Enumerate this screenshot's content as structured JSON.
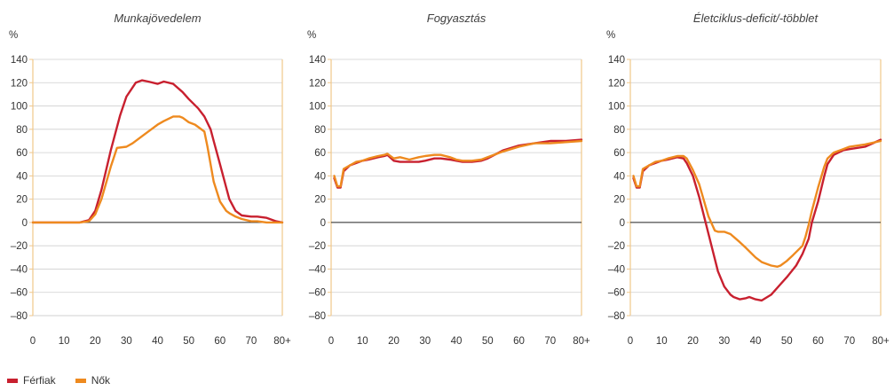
{
  "legend": [
    "Férfiak",
    "Nők"
  ],
  "colors": {
    "ferfiak": "#c8202f",
    "nok": "#ee8a1f",
    "axis_frame": "#f0c78a",
    "grid": "#cfcfcf",
    "zero_line": "#222222"
  },
  "chart_data": [
    {
      "type": "line",
      "title": "Munkajövedelem",
      "ylabel": "%",
      "xlim": [
        0,
        80
      ],
      "ylim": [
        -80,
        140
      ],
      "x_ticks": [
        "0",
        "10",
        "20",
        "30",
        "40",
        "50",
        "60",
        "70",
        "80+"
      ],
      "y_ticks": [
        "140",
        "120",
        "100",
        "80",
        "60",
        "40",
        "20",
        "0",
        "–20",
        "–40",
        "–60",
        "–80"
      ],
      "series": [
        {
          "name": "Férfiak",
          "x": [
            0,
            5,
            10,
            15,
            18,
            20,
            22,
            25,
            28,
            30,
            33,
            35,
            37,
            40,
            42,
            45,
            48,
            50,
            53,
            55,
            57,
            58,
            60,
            62,
            63,
            65,
            67,
            70,
            72,
            75,
            78,
            80
          ],
          "y": [
            0,
            0,
            0,
            0,
            2,
            10,
            28,
            62,
            92,
            108,
            120,
            122,
            121,
            119,
            121,
            119,
            112,
            106,
            98,
            91,
            80,
            70,
            50,
            30,
            20,
            10,
            6,
            5,
            5,
            4,
            1,
            0
          ]
        },
        {
          "name": "Nők",
          "x": [
            0,
            5,
            10,
            15,
            18,
            20,
            22,
            25,
            27,
            30,
            32,
            35,
            38,
            40,
            42,
            45,
            47,
            48,
            50,
            52,
            55,
            56,
            57,
            58,
            60,
            62,
            63,
            65,
            67,
            70,
            72,
            75,
            80
          ],
          "y": [
            0,
            0,
            0,
            0,
            1,
            7,
            20,
            48,
            64,
            65,
            68,
            74,
            80,
            84,
            87,
            91,
            91,
            90,
            86,
            84,
            78,
            65,
            50,
            35,
            18,
            10,
            8,
            5,
            3,
            1,
            1,
            0,
            0
          ]
        }
      ]
    },
    {
      "type": "line",
      "title": "Fogyasztás",
      "ylabel": "%",
      "xlim": [
        0,
        80
      ],
      "ylim": [
        -80,
        140
      ],
      "x_ticks": [
        "0",
        "10",
        "20",
        "30",
        "40",
        "50",
        "60",
        "70",
        "80+"
      ],
      "y_ticks": [
        "140",
        "120",
        "100",
        "80",
        "60",
        "40",
        "20",
        "0",
        "–20",
        "–40",
        "–60",
        "–80"
      ],
      "series": [
        {
          "name": "Férfiak",
          "x": [
            1,
            2,
            3,
            4,
            6,
            8,
            10,
            12,
            15,
            17,
            18,
            20,
            22,
            25,
            28,
            30,
            33,
            35,
            38,
            40,
            42,
            45,
            48,
            50,
            55,
            60,
            65,
            70,
            75,
            80
          ],
          "y": [
            38,
            30,
            30,
            44,
            49,
            51,
            53,
            54,
            56,
            57,
            58,
            53,
            52,
            52,
            52,
            53,
            55,
            55,
            54,
            53,
            52,
            52,
            53,
            55,
            62,
            66,
            68,
            70,
            70,
            71
          ]
        },
        {
          "name": "Nők",
          "x": [
            1,
            2,
            3,
            4,
            6,
            8,
            10,
            12,
            15,
            17,
            18,
            20,
            22,
            25,
            28,
            30,
            33,
            35,
            38,
            40,
            42,
            45,
            48,
            50,
            55,
            60,
            65,
            70,
            75,
            80
          ],
          "y": [
            40,
            31,
            31,
            46,
            49,
            52,
            53,
            55,
            57,
            58,
            59,
            55,
            56,
            54,
            56,
            57,
            58,
            58,
            56,
            54,
            53,
            53,
            54,
            56,
            61,
            65,
            68,
            68,
            69,
            70
          ]
        }
      ]
    },
    {
      "type": "line",
      "title": "Életciklus-deficit/-többlet",
      "ylabel": "%",
      "xlim": [
        0,
        80
      ],
      "ylim": [
        -80,
        140
      ],
      "x_ticks": [
        "0",
        "10",
        "20",
        "30",
        "40",
        "50",
        "60",
        "70",
        "80+"
      ],
      "y_ticks": [
        "140",
        "120",
        "100",
        "80",
        "60",
        "40",
        "20",
        "0",
        "–20",
        "–40",
        "–60",
        "–80"
      ],
      "series": [
        {
          "name": "Férfiak",
          "x": [
            1,
            2,
            3,
            4,
            6,
            8,
            10,
            12,
            15,
            17,
            18,
            20,
            22,
            25,
            28,
            30,
            32,
            33,
            35,
            37,
            38,
            40,
            42,
            45,
            48,
            50,
            53,
            55,
            57,
            58,
            60,
            62,
            63,
            65,
            68,
            70,
            75,
            80
          ],
          "y": [
            38,
            30,
            30,
            44,
            49,
            51,
            53,
            54,
            56,
            55,
            51,
            40,
            22,
            -10,
            -42,
            -55,
            -62,
            -64,
            -66,
            -65,
            -64,
            -66,
            -67,
            -62,
            -53,
            -47,
            -37,
            -27,
            -14,
            0,
            18,
            40,
            50,
            58,
            62,
            63,
            65,
            71
          ]
        },
        {
          "name": "Nők",
          "x": [
            1,
            2,
            3,
            4,
            6,
            8,
            10,
            12,
            15,
            17,
            18,
            20,
            22,
            25,
            27,
            28,
            30,
            32,
            35,
            37,
            40,
            42,
            45,
            47,
            48,
            50,
            52,
            55,
            56,
            57,
            58,
            60,
            62,
            63,
            65,
            68,
            70,
            75,
            80
          ],
          "y": [
            40,
            31,
            31,
            46,
            49,
            52,
            53,
            55,
            57,
            57,
            55,
            45,
            33,
            5,
            -7,
            -8,
            -8,
            -10,
            -17,
            -22,
            -30,
            -34,
            -37,
            -38,
            -37,
            -33,
            -28,
            -20,
            -12,
            -2,
            10,
            30,
            48,
            55,
            60,
            63,
            65,
            67,
            70
          ]
        }
      ]
    }
  ]
}
